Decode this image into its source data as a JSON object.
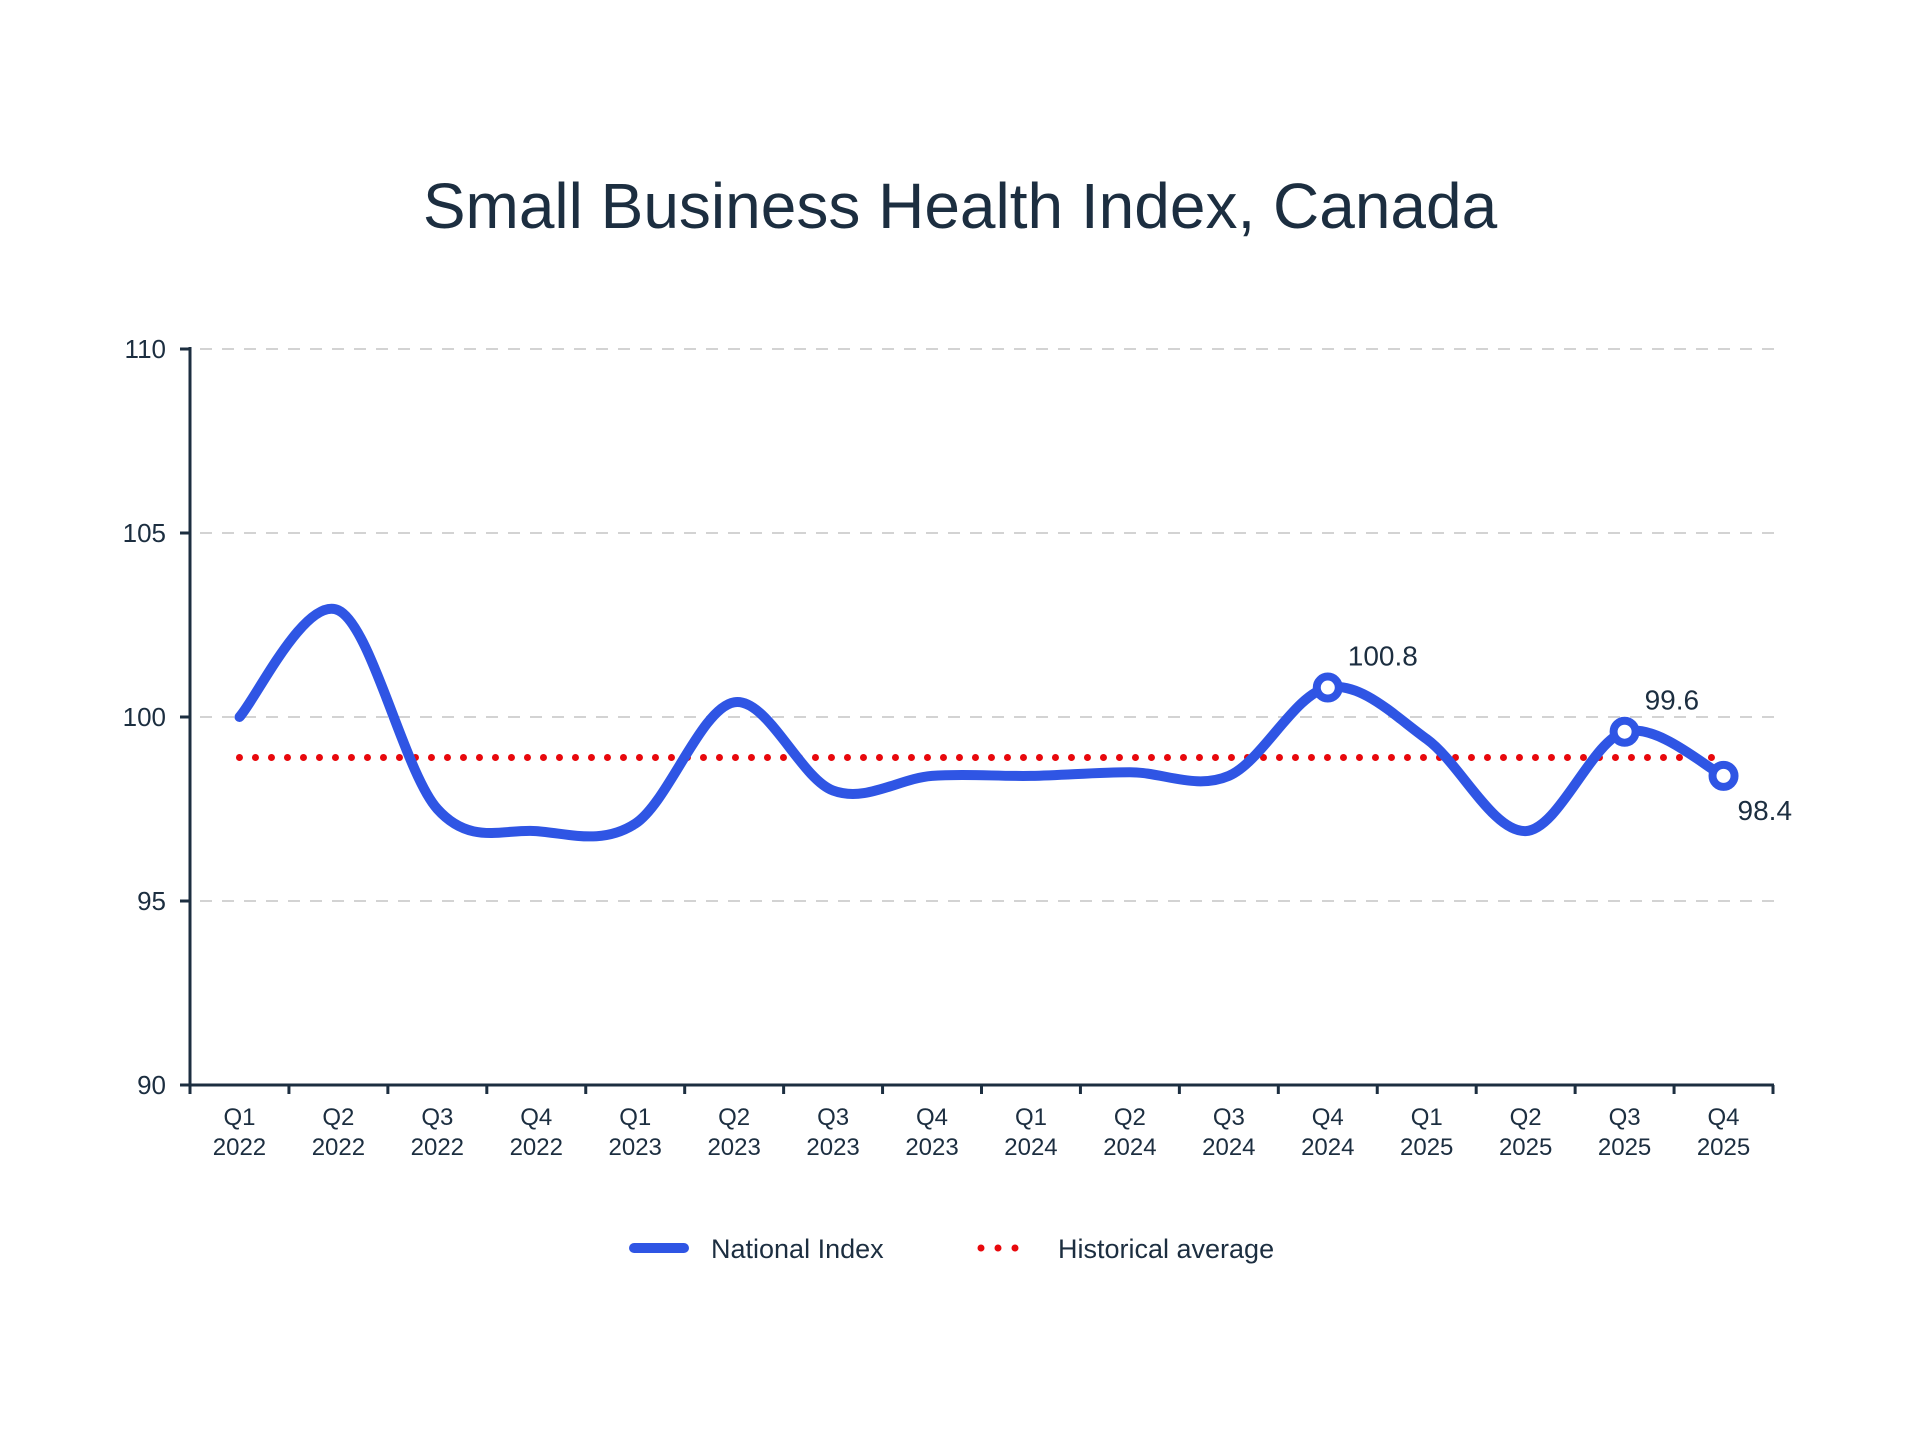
{
  "chart_data": {
    "type": "line",
    "title": "Small Business Health Index, Canada",
    "xlabel": "",
    "ylabel": "",
    "ylim": [
      90,
      110
    ],
    "yticks": [
      90,
      95,
      100,
      105,
      110
    ],
    "ytick_labels": [
      "90",
      "95",
      "100",
      "105",
      "110"
    ],
    "grid": true,
    "legend_position": "bottom-center",
    "categories": [
      {
        "q": "Q1",
        "year": "2022"
      },
      {
        "q": "Q2",
        "year": "2022"
      },
      {
        "q": "Q3",
        "year": "2022"
      },
      {
        "q": "Q4",
        "year": "2022"
      },
      {
        "q": "Q1",
        "year": "2023"
      },
      {
        "q": "Q2",
        "year": "2023"
      },
      {
        "q": "Q3",
        "year": "2023"
      },
      {
        "q": "Q4",
        "year": "2023"
      },
      {
        "q": "Q1",
        "year": "2024"
      },
      {
        "q": "Q2",
        "year": "2024"
      },
      {
        "q": "Q3",
        "year": "2024"
      },
      {
        "q": "Q4",
        "year": "2024"
      },
      {
        "q": "Q1",
        "year": "2025"
      },
      {
        "q": "Q2",
        "year": "2025"
      },
      {
        "q": "Q3",
        "year": "2025"
      },
      {
        "q": "Q4",
        "year": "2025"
      }
    ],
    "series": [
      {
        "name": "National Index",
        "color": "#2f55e4",
        "style": "solid",
        "values": [
          100.0,
          102.9,
          97.5,
          96.9,
          97.1,
          100.4,
          98.0,
          98.4,
          98.4,
          98.5,
          98.4,
          100.8,
          99.4,
          96.9,
          99.6,
          98.4
        ]
      },
      {
        "name": "Historical average",
        "color": "#e8080c",
        "style": "dotted",
        "value": 98.9
      }
    ],
    "annotations": [
      {
        "index": 11,
        "label": "100.8",
        "position": "above-right"
      },
      {
        "index": 14,
        "label": "99.6",
        "position": "above-right"
      },
      {
        "index": 15,
        "label": "98.4",
        "position": "below-right"
      }
    ]
  },
  "colors": {
    "text": "#1c2e40",
    "axis": "#1c2e40",
    "grid": "#d3d3d3"
  }
}
